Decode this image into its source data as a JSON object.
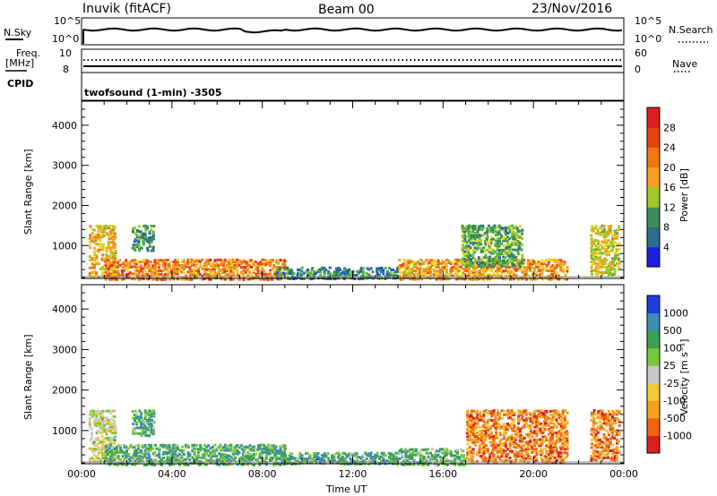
{
  "header": {
    "station": "Inuvik (fitACF)",
    "beam": "Beam 00",
    "date": "23/Nov/2016"
  },
  "top_panels": {
    "nsky_label": "N.Sky",
    "nsky_ticks": [
      "10^5",
      "10^0"
    ],
    "nsearch_label": "N.Search",
    "nsearch_ticks": [
      "10^5",
      "10^0"
    ],
    "freq_label": "Freq.",
    "freq_unit": "[MHz]",
    "freq_ticks": [
      "10",
      "8"
    ],
    "nave_label": "Nave",
    "nave_ticks": [
      "60",
      "0"
    ],
    "cpid_label": "CPID",
    "cpid_text": "twofsound (1-min) -3505"
  },
  "colors": {
    "power_scale": [
      "#1e1ee6",
      "#1e50dc",
      "#2b6e8f",
      "#3c8c5a",
      "#56b43c",
      "#a0c828",
      "#f0d21e",
      "#f5a01e",
      "#f07814",
      "#e64614",
      "#dc1e1e"
    ],
    "velocity_scale": [
      "#dc1e1e",
      "#f06414",
      "#f5a01e",
      "#f0c83c",
      "#c8c8c8",
      "#78c83c",
      "#3ca050",
      "#3c8cb4",
      "#1e3cdc"
    ]
  },
  "chart_data": [
    {
      "type": "heatmap",
      "title": "Power",
      "ylabel": "Slant Range [km]",
      "colorbar_label": "Power [dB]",
      "colorbar_ticks": [
        "4",
        "8",
        "12",
        "16",
        "20",
        "24",
        "28"
      ],
      "ylim": [
        180,
        4600
      ],
      "yticks": [
        1000,
        2000,
        3000,
        4000
      ],
      "xlim": [
        0,
        24
      ],
      "regions": [
        {
          "t0": 0.3,
          "t1": 1.5,
          "r0": 250,
          "r1": 1550,
          "level": 0.65
        },
        {
          "t0": 2.2,
          "t1": 3.2,
          "r0": 900,
          "r1": 1550,
          "level": 0.35
        },
        {
          "t0": 1.0,
          "t1": 9.0,
          "r0": 180,
          "r1": 700,
          "level": 0.75
        },
        {
          "t0": 8.5,
          "t1": 14.0,
          "r0": 200,
          "r1": 500,
          "level": 0.3
        },
        {
          "t0": 14.0,
          "t1": 21.5,
          "r0": 180,
          "r1": 700,
          "level": 0.7
        },
        {
          "t0": 16.8,
          "t1": 19.5,
          "r0": 500,
          "r1": 1550,
          "level": 0.4
        },
        {
          "t0": 22.5,
          "t1": 23.8,
          "r0": 300,
          "r1": 1550,
          "level": 0.55
        }
      ]
    },
    {
      "type": "heatmap",
      "title": "Velocity",
      "ylabel": "Slant Range [km]",
      "colorbar_label": "Velocity [m s⁻¹]",
      "colorbar_ticks": [
        "1000",
        "500",
        "100",
        "25",
        "-25",
        "-100",
        "-500",
        "-1000"
      ],
      "xlabel": "Time UT",
      "xticks": [
        "00:00",
        "04:00",
        "08:00",
        "12:00",
        "16:00",
        "20:00",
        "00:00"
      ],
      "ylim": [
        180,
        4600
      ],
      "yticks": [
        1000,
        2000,
        3000,
        4000
      ],
      "xlim": [
        0,
        24
      ],
      "regions": [
        {
          "t0": 0.3,
          "t1": 1.5,
          "r0": 250,
          "r1": 1550,
          "level": 0.5
        },
        {
          "t0": 2.2,
          "t1": 3.2,
          "r0": 900,
          "r1": 1550,
          "level": 0.7
        },
        {
          "t0": 1.0,
          "t1": 9.0,
          "r0": 180,
          "r1": 700,
          "level": 0.7
        },
        {
          "t0": 8.5,
          "t1": 14.0,
          "r0": 200,
          "r1": 500,
          "level": 0.72
        },
        {
          "t0": 14.0,
          "t1": 17.0,
          "r0": 180,
          "r1": 600,
          "level": 0.68
        },
        {
          "t0": 17.0,
          "t1": 21.5,
          "r0": 250,
          "r1": 1550,
          "level": 0.22
        },
        {
          "t0": 22.5,
          "t1": 23.8,
          "r0": 300,
          "r1": 1550,
          "level": 0.2
        }
      ]
    }
  ]
}
